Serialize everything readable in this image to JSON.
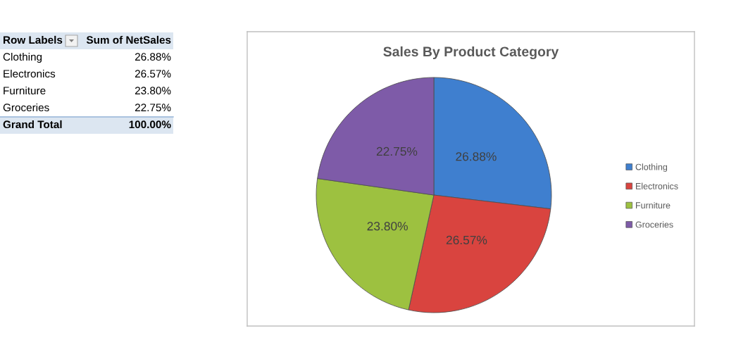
{
  "chart_data": {
    "type": "pie",
    "title": "Sales By Product Category",
    "categories": [
      "Clothing",
      "Electronics",
      "Furniture",
      "Groceries"
    ],
    "values": [
      26.88,
      26.57,
      23.8,
      22.75
    ],
    "value_labels": [
      "26.88%",
      "26.57%",
      "23.80%",
      "22.75%"
    ],
    "colors": [
      "#3f7fcf",
      "#d9443f",
      "#9dc140",
      "#7e5ba8"
    ],
    "legend": "right",
    "annotations": [
      "Row Labels",
      "Sum of NetSales",
      "Grand Total",
      "100.00%"
    ]
  }
}
